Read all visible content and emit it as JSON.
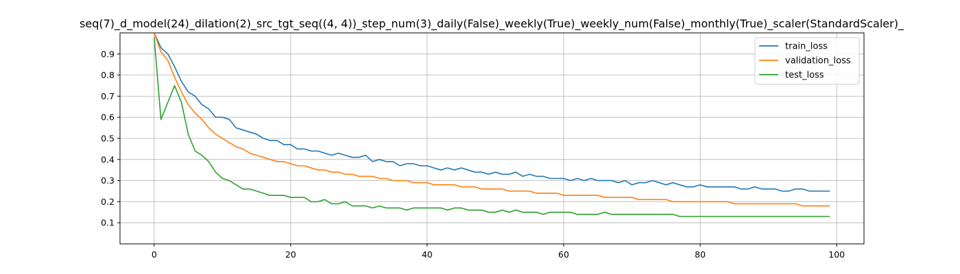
{
  "chart_data": {
    "type": "line",
    "title": "seq(7)_d_model(24)_dilation(2)_src_tgt_seq((4, 4))_step_num(3)_daily(False)_weekly(True)_weekly_num(False)_monthly(True)_scaler(StandardScaler)_",
    "xlabel": "",
    "ylabel": "",
    "xlim": [
      -5,
      104
    ],
    "ylim": [
      0.0,
      1.0
    ],
    "x_ticks": [
      0,
      20,
      40,
      60,
      80,
      100
    ],
    "y_ticks": [
      0.1,
      0.2,
      0.3,
      0.4,
      0.5,
      0.6,
      0.7,
      0.8,
      0.9
    ],
    "grid": true,
    "legend_position": "top-right",
    "x": [
      0,
      1,
      2,
      3,
      4,
      5,
      6,
      7,
      8,
      9,
      10,
      11,
      12,
      13,
      14,
      15,
      16,
      17,
      18,
      19,
      20,
      21,
      22,
      23,
      24,
      25,
      26,
      27,
      28,
      29,
      30,
      31,
      32,
      33,
      34,
      35,
      36,
      37,
      38,
      39,
      40,
      41,
      42,
      43,
      44,
      45,
      46,
      47,
      48,
      49,
      50,
      51,
      52,
      53,
      54,
      55,
      56,
      57,
      58,
      59,
      60,
      61,
      62,
      63,
      64,
      65,
      66,
      67,
      68,
      69,
      70,
      71,
      72,
      73,
      74,
      75,
      76,
      77,
      78,
      79,
      80,
      81,
      82,
      83,
      84,
      85,
      86,
      87,
      88,
      89,
      90,
      91,
      92,
      93,
      94,
      95,
      96,
      97,
      98,
      99
    ],
    "series": [
      {
        "name": "train_loss",
        "color": "#1f77b4",
        "values": [
          1.12,
          0.93,
          0.9,
          0.84,
          0.77,
          0.72,
          0.7,
          0.66,
          0.64,
          0.6,
          0.6,
          0.59,
          0.55,
          0.54,
          0.53,
          0.52,
          0.5,
          0.49,
          0.49,
          0.47,
          0.47,
          0.45,
          0.45,
          0.44,
          0.44,
          0.43,
          0.42,
          0.43,
          0.42,
          0.41,
          0.41,
          0.42,
          0.39,
          0.4,
          0.39,
          0.39,
          0.37,
          0.38,
          0.38,
          0.37,
          0.37,
          0.36,
          0.35,
          0.36,
          0.35,
          0.36,
          0.35,
          0.34,
          0.34,
          0.33,
          0.34,
          0.33,
          0.33,
          0.34,
          0.32,
          0.33,
          0.32,
          0.32,
          0.31,
          0.31,
          0.31,
          0.3,
          0.31,
          0.3,
          0.31,
          0.3,
          0.3,
          0.3,
          0.29,
          0.3,
          0.28,
          0.29,
          0.29,
          0.3,
          0.29,
          0.28,
          0.29,
          0.28,
          0.27,
          0.27,
          0.28,
          0.27,
          0.27,
          0.27,
          0.27,
          0.27,
          0.26,
          0.26,
          0.27,
          0.26,
          0.26,
          0.26,
          0.25,
          0.25,
          0.26,
          0.26,
          0.25,
          0.25,
          0.25,
          0.25
        ]
      },
      {
        "name": "validation_loss",
        "color": "#ff7f0e",
        "values": [
          1.1,
          0.91,
          0.87,
          0.79,
          0.72,
          0.66,
          0.62,
          0.59,
          0.55,
          0.52,
          0.5,
          0.48,
          0.46,
          0.45,
          0.43,
          0.42,
          0.41,
          0.4,
          0.39,
          0.39,
          0.38,
          0.37,
          0.37,
          0.36,
          0.35,
          0.35,
          0.34,
          0.34,
          0.33,
          0.33,
          0.32,
          0.32,
          0.32,
          0.31,
          0.31,
          0.3,
          0.3,
          0.3,
          0.29,
          0.29,
          0.29,
          0.28,
          0.28,
          0.28,
          0.28,
          0.27,
          0.27,
          0.27,
          0.26,
          0.26,
          0.26,
          0.26,
          0.25,
          0.25,
          0.25,
          0.25,
          0.24,
          0.24,
          0.24,
          0.24,
          0.23,
          0.23,
          0.23,
          0.23,
          0.23,
          0.23,
          0.22,
          0.22,
          0.22,
          0.22,
          0.22,
          0.21,
          0.21,
          0.21,
          0.21,
          0.21,
          0.2,
          0.2,
          0.2,
          0.2,
          0.2,
          0.2,
          0.2,
          0.2,
          0.2,
          0.19,
          0.19,
          0.19,
          0.19,
          0.19,
          0.19,
          0.19,
          0.19,
          0.19,
          0.19,
          0.18,
          0.18,
          0.18,
          0.18,
          0.18
        ]
      },
      {
        "name": "test_loss",
        "color": "#2ca02c",
        "values": [
          0.98,
          0.59,
          0.67,
          0.75,
          0.67,
          0.52,
          0.44,
          0.42,
          0.39,
          0.34,
          0.31,
          0.3,
          0.28,
          0.26,
          0.26,
          0.25,
          0.24,
          0.23,
          0.23,
          0.23,
          0.22,
          0.22,
          0.22,
          0.2,
          0.2,
          0.21,
          0.19,
          0.19,
          0.2,
          0.18,
          0.18,
          0.18,
          0.17,
          0.18,
          0.17,
          0.17,
          0.17,
          0.16,
          0.17,
          0.17,
          0.17,
          0.17,
          0.17,
          0.16,
          0.17,
          0.17,
          0.16,
          0.16,
          0.16,
          0.15,
          0.15,
          0.16,
          0.15,
          0.16,
          0.15,
          0.15,
          0.15,
          0.14,
          0.15,
          0.15,
          0.15,
          0.15,
          0.14,
          0.14,
          0.14,
          0.14,
          0.15,
          0.14,
          0.14,
          0.14,
          0.14,
          0.14,
          0.14,
          0.14,
          0.14,
          0.14,
          0.14,
          0.13,
          0.13,
          0.13,
          0.13,
          0.13,
          0.13,
          0.13,
          0.13,
          0.13,
          0.13,
          0.13,
          0.13,
          0.13,
          0.13,
          0.13,
          0.13,
          0.13,
          0.13,
          0.13,
          0.13,
          0.13,
          0.13,
          0.13
        ]
      }
    ]
  }
}
